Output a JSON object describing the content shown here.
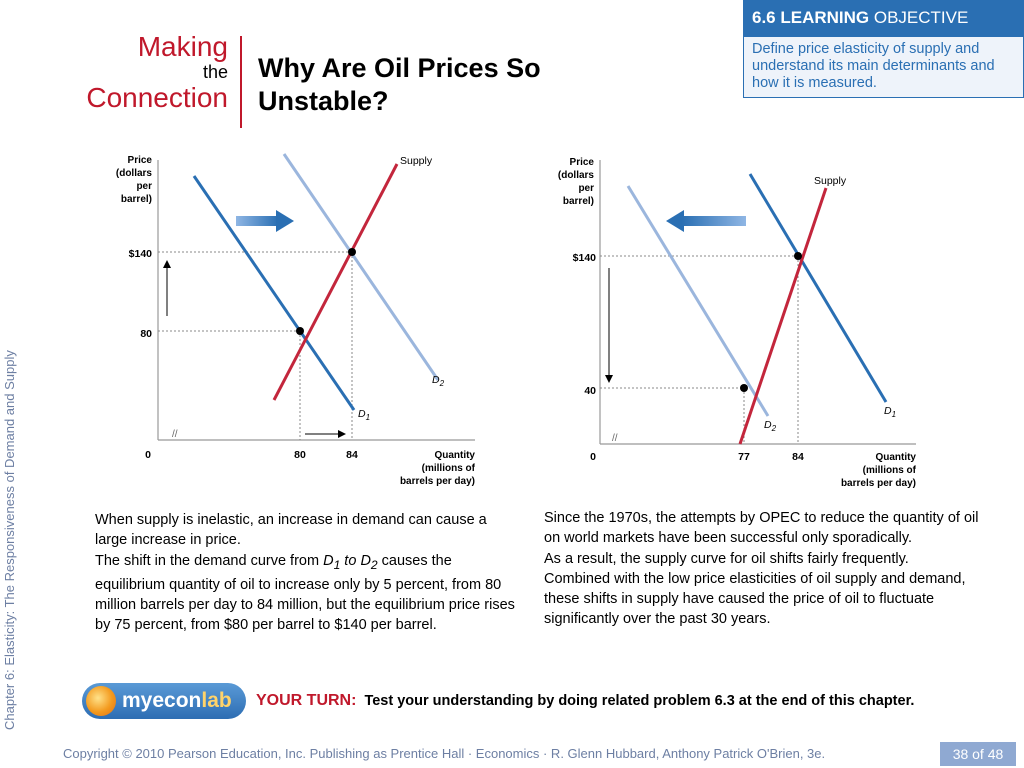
{
  "sidebar": {
    "chapter_text": "Chapter 6:  Elasticity:  The Responsiveness of Demand and Supply"
  },
  "header": {
    "making": "Making",
    "the": "the",
    "connection": "Connection",
    "title": "Why Are Oil Prices So Unstable?"
  },
  "learning_objective": {
    "number_label": "6.6 LEARNING",
    "word": "OBJECTIVE",
    "text": "Define price elasticity of supply and understand its main determinants and how it is measured."
  },
  "chart_data": [
    {
      "type": "line",
      "ylabel": [
        "Price",
        "(dollars",
        "per",
        "barrel)"
      ],
      "xlabel": [
        "Quantity",
        "(millions of",
        "barrels per day)"
      ],
      "y_ticks": [
        "$140",
        "80",
        "0"
      ],
      "x_ticks": [
        "80",
        "84"
      ],
      "series": [
        {
          "name": "Supply",
          "color": "#c3263c",
          "points": [
            [
              80,
              80
            ],
            [
              84,
              140
            ]
          ]
        },
        {
          "name": "D1",
          "color": "#2a6fb3",
          "points": [
            [
              80,
              80
            ]
          ]
        },
        {
          "name": "D2",
          "color": "#9bb6dd",
          "points": [
            [
              84,
              140
            ]
          ]
        }
      ],
      "equilibria": [
        {
          "x": 80,
          "y": 80
        },
        {
          "x": 84,
          "y": 140
        }
      ],
      "shift": "right"
    },
    {
      "type": "line",
      "ylabel": [
        "Price",
        "(dollars",
        "per",
        "barrel)"
      ],
      "xlabel": [
        "Quantity",
        "(millions of",
        "barrels per day)"
      ],
      "y_ticks": [
        "$140",
        "40",
        "0"
      ],
      "x_ticks": [
        "77",
        "84"
      ],
      "series": [
        {
          "name": "Supply",
          "color": "#c3263c",
          "points": [
            [
              77,
              40
            ],
            [
              84,
              140
            ]
          ]
        },
        {
          "name": "D1",
          "color": "#2a6fb3",
          "points": [
            [
              84,
              140
            ]
          ]
        },
        {
          "name": "D2",
          "color": "#9bb6dd",
          "points": [
            [
              77,
              40
            ]
          ]
        }
      ],
      "equilibria": [
        {
          "x": 84,
          "y": 140
        },
        {
          "x": 77,
          "y": 40
        }
      ],
      "shift": "left"
    }
  ],
  "captions": {
    "left": {
      "p1": "When supply is inelastic, an increase in demand can cause a large increase in price.",
      "p2_pre": "The shift in the demand curve from ",
      "p2_d1": "D",
      "p2_d1_sub": "1",
      "p2_to": " to ",
      "p2_d2": "D",
      "p2_d2_sub": "2",
      "p2_post": " causes the equilibrium quantity of oil to increase only by 5 percent, from 80 million barrels per day to 84 million, but the equilibrium price rises by 75 percent, from $80 per barrel to $140 per barrel."
    },
    "right": {
      "p1": "Since the 1970s, the attempts by OPEC to reduce the quantity of oil on world markets have been successful only sporadically.",
      "p2": "As a result, the supply curve for oil shifts fairly frequently.",
      "p3": "Combined with the low price elasticities of oil supply and demand, these shifts in supply have caused the price of oil to fluctuate significantly over the past 30 years."
    }
  },
  "your_turn": {
    "logo_my": "my",
    "logo_econ": "econ",
    "logo_lab": "lab",
    "lead": "YOUR TURN:",
    "text": "Test your understanding by doing related problem 6.3 at the end of this chapter."
  },
  "footer": {
    "copyright": "Copyright © 2010 Pearson Education, Inc. Publishing as Prentice Hall · Economics · R. Glenn Hubbard, Anthony Patrick O'Brien, 3e.",
    "page": "38 of 48"
  },
  "colors": {
    "accent_red": "#c0182b",
    "accent_blue": "#2a6fb3",
    "supply": "#c3263c",
    "d1": "#2a6fb3",
    "d2": "#9bb6dd"
  }
}
